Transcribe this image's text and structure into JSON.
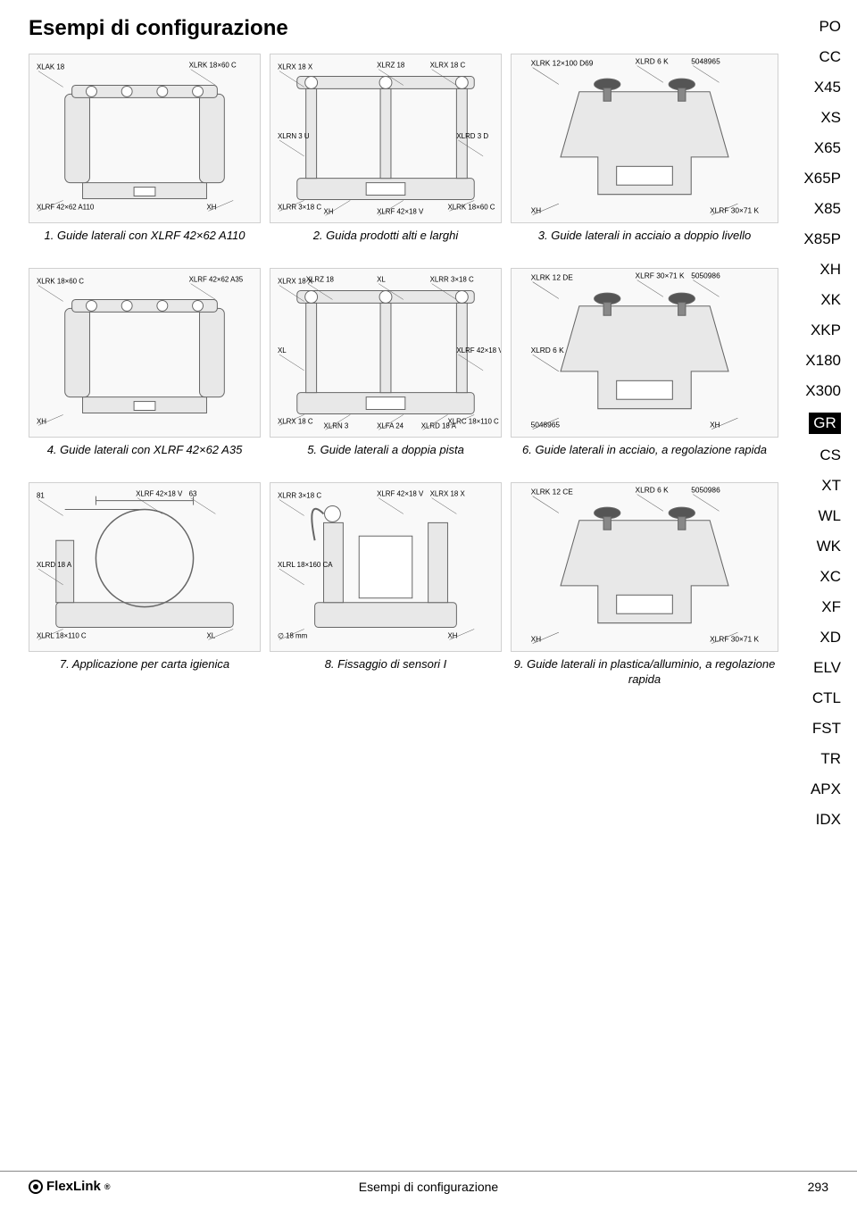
{
  "page_title": "Esempi di configurazione",
  "sidebar": {
    "items": [
      "PO",
      "CC",
      "X45",
      "XS",
      "X65",
      "X65P",
      "X85",
      "X85P",
      "XH",
      "XK",
      "XKP",
      "X180",
      "X300",
      "GR",
      "CS",
      "XT",
      "WL",
      "WK",
      "XC",
      "XF",
      "XD",
      "ELV",
      "CTL",
      "FST",
      "TR",
      "APX",
      "IDX"
    ],
    "active_index": 13
  },
  "figures": [
    {
      "caption": "1. Guide laterali con XLRF 42×62 A110",
      "labels": [
        "XLAK 18",
        "XLRK 18×60 C",
        "XLRF 42×62 A110",
        "XH"
      ],
      "type": "bracket-assembly",
      "colors": {
        "fill": "#e8e8e8",
        "stroke": "#666666"
      }
    },
    {
      "caption": "2. Guida prodotti alti e larghi",
      "labels": [
        "XLRX 18 X",
        "XLRX 18 C",
        "XLRR 3×18 C",
        "XLRK 18×60 C",
        "XLRZ 18",
        "XLRN 3 U",
        "XLRD 3 D",
        "XLRF 42×18 V",
        "XH"
      ],
      "type": "frame-assembly",
      "colors": {
        "fill": "#e8e8e8",
        "stroke": "#666666"
      }
    },
    {
      "caption": "3. Guide laterali in acciaio a doppio livello",
      "labels": [
        "XLRK 12×100 D69",
        "5048965",
        "XH",
        "XLRF 30×71 K",
        "XLRD 6 K"
      ],
      "type": "clamp-assembly",
      "colors": {
        "fill": "#e8e8e8",
        "stroke": "#666666"
      }
    },
    {
      "caption": "4. Guide laterali con XLRF 42×62 A35",
      "labels": [
        "XLRK 18×60 C",
        "XLRF 42×62 A35",
        "XH"
      ],
      "type": "bracket-assembly",
      "colors": {
        "fill": "#e8e8e8",
        "stroke": "#666666"
      }
    },
    {
      "caption": "5. Guide laterali a doppia pista",
      "labels": [
        "XLRX 18 X",
        "XLRR 3×18 C",
        "XLRX 18 C",
        "XLRC 18×110 C",
        "XL",
        "XL",
        "XLRF 42×18 V",
        "XLFA 24",
        "XLRN 3",
        "XLRD 18 A",
        "XLRZ 18"
      ],
      "type": "frame-assembly",
      "colors": {
        "fill": "#e8e8e8",
        "stroke": "#666666"
      }
    },
    {
      "caption": "6. Guide laterali in acciaio, a regolazione rapida",
      "labels": [
        "XLRK 12 DE",
        "5050986",
        "5048965",
        "XH",
        "XLRF 30×71 K",
        "XLRD 6 K"
      ],
      "type": "clamp-assembly",
      "colors": {
        "fill": "#e8e8e8",
        "stroke": "#666666"
      }
    },
    {
      "caption": "7. Applicazione per carta igienica",
      "labels": [
        "81",
        "63",
        "XLRL 18×110 C",
        "XL",
        "XLRF 42×18 V",
        "XLRD 18 A"
      ],
      "type": "roll-assembly",
      "colors": {
        "fill": "#e8e8e8",
        "stroke": "#666666"
      }
    },
    {
      "caption": "8. Fissaggio di sensori I",
      "labels": [
        "XLRR 3×18 C",
        "XLRX 18 X",
        "∅ 18 mm",
        "XH",
        "XLRF 42×18 V",
        "XLRL 18×160 CA"
      ],
      "type": "sensor-assembly",
      "colors": {
        "fill": "#e8e8e8",
        "stroke": "#666666"
      }
    },
    {
      "caption": "9. Guide laterali in plastica/alluminio, a regolazione rapida",
      "labels": [
        "XLRK 12 CE",
        "5050986",
        "XH",
        "XLRF 30×71 K",
        "XLRD 6 K"
      ],
      "type": "clamp-assembly",
      "colors": {
        "fill": "#e8e8e8",
        "stroke": "#666666"
      }
    }
  ],
  "footer": {
    "logo_text": "FlexLink",
    "center_text": "Esempi di configurazione",
    "page_number": "293"
  }
}
